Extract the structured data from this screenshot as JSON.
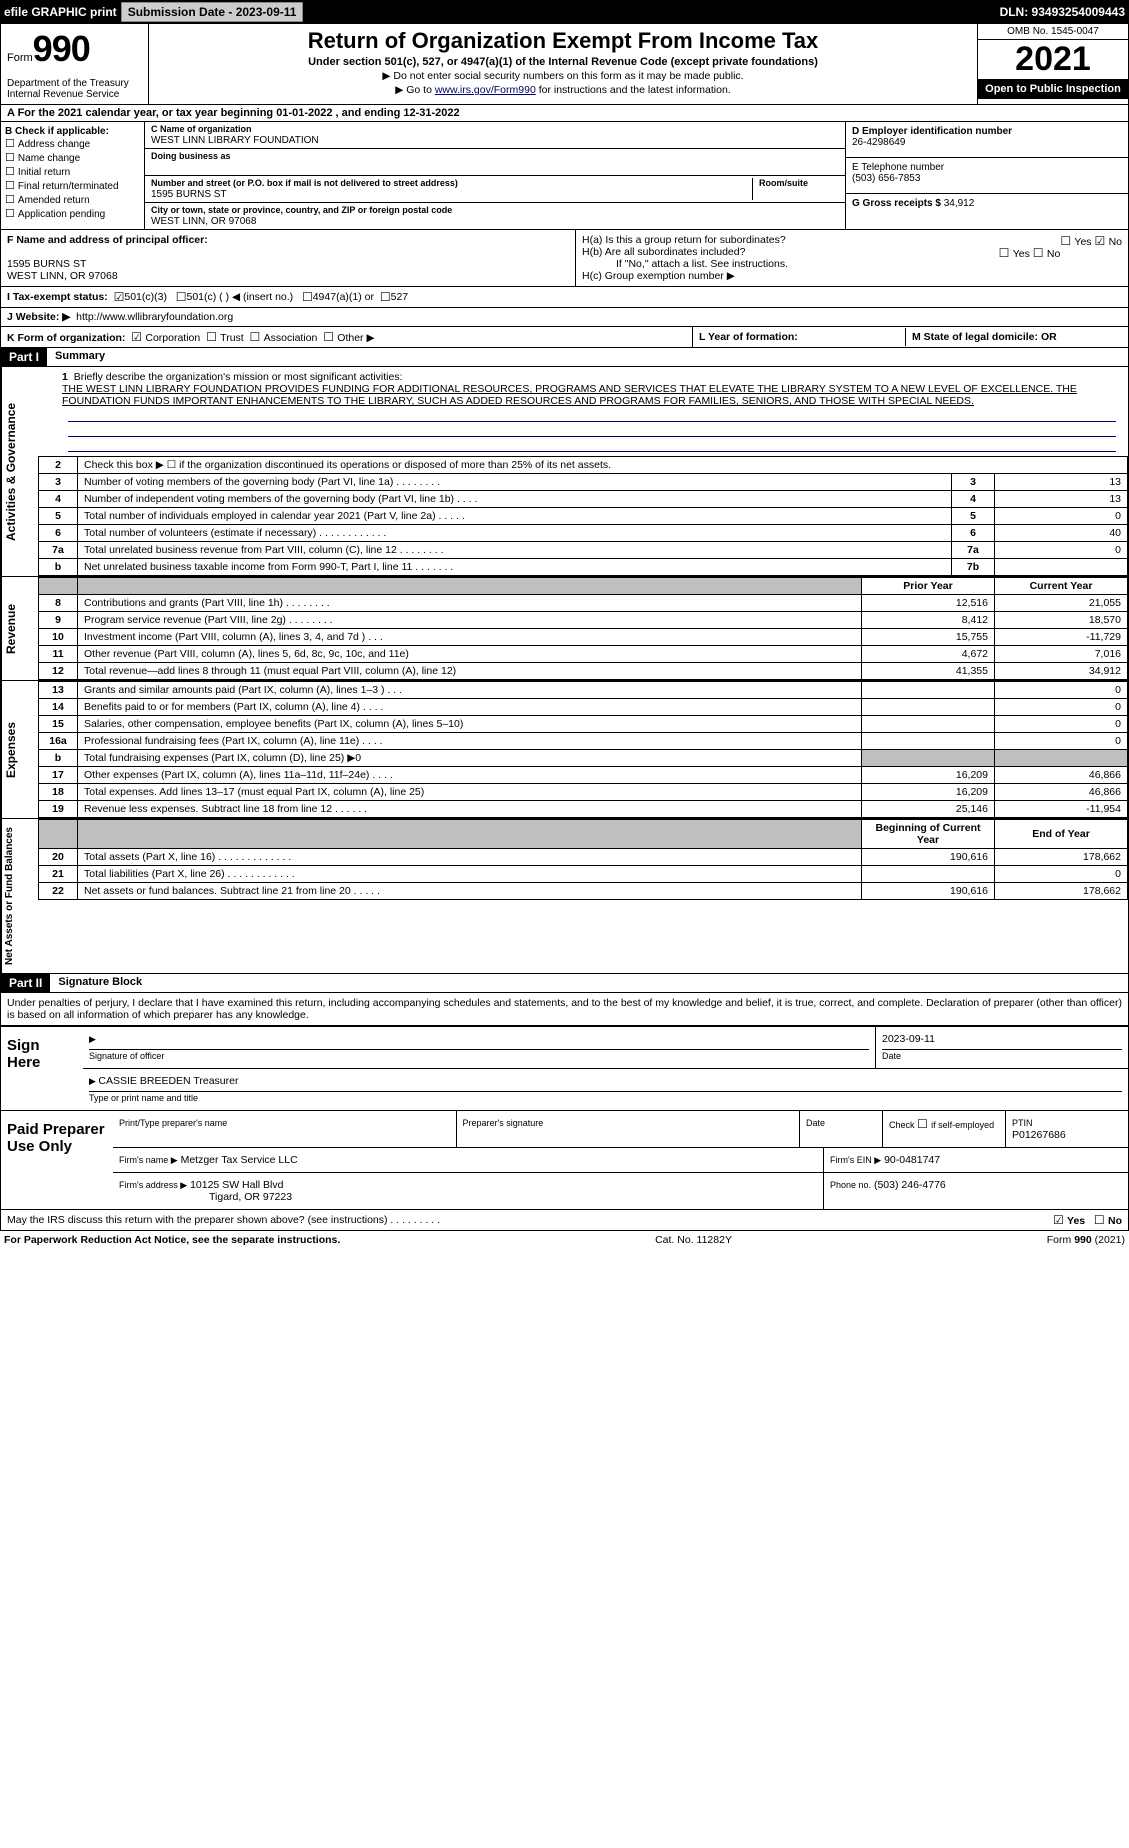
{
  "topbar": {
    "efile": "efile GRAPHIC print",
    "subdate_label": "Submission Date - 2023-09-11",
    "dln": "DLN: 93493254009443"
  },
  "header": {
    "form_word": "Form",
    "form_no": "990",
    "dept": "Department of the Treasury\nInternal Revenue Service",
    "title": "Return of Organization Exempt From Income Tax",
    "subtitle": "Under section 501(c), 527, or 4947(a)(1) of the Internal Revenue Code (except private foundations)",
    "note1": "▶ Do not enter social security numbers on this form as it may be made public.",
    "note2_pre": "▶ Go to ",
    "note2_link": "www.irs.gov/Form990",
    "note2_post": " for instructions and the latest information.",
    "omb": "OMB No. 1545-0047",
    "year": "2021",
    "open_pub": "Open to Public Inspection"
  },
  "rowA": "A For the 2021 calendar year, or tax year beginning 01-01-2022    , and ending 12-31-2022",
  "boxB": {
    "title": "B Check if applicable:",
    "items": [
      "Address change",
      "Name change",
      "Initial return",
      "Final return/terminated",
      "Amended return",
      "Application pending"
    ]
  },
  "boxC": {
    "c_label": "C Name of organization",
    "c_name": "WEST LINN LIBRARY FOUNDATION",
    "dba_label": "Doing business as",
    "street_label": "Number and street (or P.O. box if mail is not delivered to street address)",
    "street": "1595 BURNS ST",
    "room_label": "Room/suite",
    "city_label": "City or town, state or province, country, and ZIP or foreign postal code",
    "city": "WEST LINN, OR  97068"
  },
  "boxD": {
    "label": "D Employer identification number",
    "value": "26-4298649"
  },
  "boxE": {
    "label": "E Telephone number",
    "value": "(503) 656-7853"
  },
  "boxG": {
    "label": "G Gross receipts $",
    "value": "34,912"
  },
  "boxF": {
    "label": "F Name and address of principal officer:",
    "l1": "1595 BURNS ST",
    "l2": "WEST LINN, OR  97068"
  },
  "boxH": {
    "ha": "H(a)  Is this a group return for subordinates?",
    "hb": "H(b)  Are all subordinates included?",
    "hb_note": "If \"No,\" attach a list. See instructions.",
    "hc": "H(c)  Group exemption number ▶",
    "yes": "Yes",
    "no": "No"
  },
  "rowI": {
    "label": "I   Tax-exempt status:",
    "o1": "501(c)(3)",
    "o2": "501(c) (   ) ◀ (insert no.)",
    "o3": "4947(a)(1) or",
    "o4": "527"
  },
  "rowJ": {
    "label": "J   Website: ▶",
    "value": "http://www.wllibraryfoundation.org"
  },
  "rowK": {
    "label": "K Form of organization:",
    "opts": [
      "Corporation",
      "Trust",
      "Association",
      "Other ▶"
    ],
    "l_label": "L Year of formation:",
    "m_label": "M State of legal domicile: OR"
  },
  "part1": {
    "label": "Part I",
    "title": "Summary"
  },
  "mission": {
    "num": "1",
    "lead": "Briefly describe the organization's mission or most significant activities:",
    "text": "THE WEST LINN LIBRARY FOUNDATION PROVIDES FUNDING FOR ADDITIONAL RESOURCES, PROGRAMS AND SERVICES THAT ELEVATE THE LIBRARY SYSTEM TO A NEW LEVEL OF EXCELLENCE. THE FOUNDATION FUNDS IMPORTANT ENHANCEMENTS TO THE LIBRARY, SUCH AS ADDED RESOURCES AND PROGRAMS FOR FAMILIES, SENIORS, AND THOSE WITH SPECIAL NEEDS."
  },
  "gov_rows": [
    {
      "n": "2",
      "d": "Check this box ▶ ☐  if the organization discontinued its operations or disposed of more than 25% of its net assets.",
      "b": "",
      "v": ""
    },
    {
      "n": "3",
      "d": "Number of voting members of the governing body (Part VI, line 1a)   .    .    .    .    .    .    .    .",
      "b": "3",
      "v": "13"
    },
    {
      "n": "4",
      "d": "Number of independent voting members of the governing body (Part VI, line 1b)    .    .    .    .",
      "b": "4",
      "v": "13"
    },
    {
      "n": "5",
      "d": "Total number of individuals employed in calendar year 2021 (Part V, line 2a)   .    .    .    .    .",
      "b": "5",
      "v": "0"
    },
    {
      "n": "6",
      "d": "Total number of volunteers (estimate if necessary)    .    .    .    .    .    .    .    .    .    .    .    .",
      "b": "6",
      "v": "40"
    },
    {
      "n": "7a",
      "d": "Total unrelated business revenue from Part VIII, column (C), line 12   .    .    .    .    .    .    .    .",
      "b": "7a",
      "v": "0"
    },
    {
      "n": "b",
      "d": "Net unrelated business taxable income from Form 990-T, Part I, line 11   .    .    .    .    .    .    .",
      "b": "7b",
      "v": ""
    }
  ],
  "yr_hdr": {
    "py": "Prior Year",
    "cy": "Current Year"
  },
  "rev_rows": [
    {
      "n": "8",
      "d": "Contributions and grants (Part VIII, line 1h)    .    .    .    .    .    .    .    .",
      "py": "12,516",
      "cy": "21,055"
    },
    {
      "n": "9",
      "d": "Program service revenue (Part VIII, line 2g)    .    .    .    .    .    .    .    .",
      "py": "8,412",
      "cy": "18,570"
    },
    {
      "n": "10",
      "d": "Investment income (Part VIII, column (A), lines 3, 4, and 7d )    .    .    .",
      "py": "15,755",
      "cy": "-11,729"
    },
    {
      "n": "11",
      "d": "Other revenue (Part VIII, column (A), lines 5, 6d, 8c, 9c, 10c, and 11e)",
      "py": "4,672",
      "cy": "7,016"
    },
    {
      "n": "12",
      "d": "Total revenue—add lines 8 through 11 (must equal Part VIII, column (A), line 12)",
      "py": "41,355",
      "cy": "34,912"
    }
  ],
  "exp_rows": [
    {
      "n": "13",
      "d": "Grants and similar amounts paid (Part IX, column (A), lines 1–3 )   .    .    .",
      "py": "",
      "cy": "0"
    },
    {
      "n": "14",
      "d": "Benefits paid to or for members (Part IX, column (A), line 4)   .    .    .    .",
      "py": "",
      "cy": "0"
    },
    {
      "n": "15",
      "d": "Salaries, other compensation, employee benefits (Part IX, column (A), lines 5–10)",
      "py": "",
      "cy": "0"
    },
    {
      "n": "16a",
      "d": "Professional fundraising fees (Part IX, column (A), line 11e)   .    .    .    .",
      "py": "",
      "cy": "0"
    },
    {
      "n": "b",
      "d": "Total fundraising expenses (Part IX, column (D), line 25) ▶0",
      "py": "grey",
      "cy": "grey"
    },
    {
      "n": "17",
      "d": "Other expenses (Part IX, column (A), lines 11a–11d, 11f–24e)   .    .    .    .",
      "py": "16,209",
      "cy": "46,866"
    },
    {
      "n": "18",
      "d": "Total expenses. Add lines 13–17 (must equal Part IX, column (A), line 25)",
      "py": "16,209",
      "cy": "46,866"
    },
    {
      "n": "19",
      "d": "Revenue less expenses. Subtract line 18 from line 12   .    .    .    .    .    .",
      "py": "25,146",
      "cy": "-11,954"
    }
  ],
  "na_hdr": {
    "py": "Beginning of Current Year",
    "cy": "End of Year"
  },
  "na_rows": [
    {
      "n": "20",
      "d": "Total assets (Part X, line 16)   .    .    .    .    .    .    .    .    .    .    .    .    .",
      "py": "190,616",
      "cy": "178,662"
    },
    {
      "n": "21",
      "d": "Total liabilities (Part X, line 26)   .    .    .    .    .    .    .    .    .    .    .    .",
      "py": "",
      "cy": "0"
    },
    {
      "n": "22",
      "d": "Net assets or fund balances. Subtract line 21 from line 20   .    .    .    .    .",
      "py": "190,616",
      "cy": "178,662"
    }
  ],
  "part2": {
    "label": "Part II",
    "title": "Signature Block"
  },
  "penalties": "Under penalties of perjury, I declare that I have examined this return, including accompanying schedules and statements, and to the best of my knowledge and belief, it is true, correct, and complete. Declaration of preparer (other than officer) is based on all information of which preparer has any knowledge.",
  "sign": {
    "here": "Sign Here",
    "sig_officer": "Signature of officer",
    "date": "Date",
    "date_v": "2023-09-11",
    "name": "CASSIE BREEDEN  Treasurer",
    "name_lbl": "Type or print name and title"
  },
  "paid": {
    "title": "Paid Preparer Use Only",
    "h1": "Print/Type preparer's name",
    "h2": "Preparer's signature",
    "h3": "Date",
    "h4_pre": "Check",
    "h4_post": "if self-employed",
    "h5": "PTIN",
    "ptin": "P01267686",
    "firm_name_l": "Firm's name    ▶",
    "firm_name": "Metzger Tax Service LLC",
    "firm_ein_l": "Firm's EIN ▶",
    "firm_ein": "90-0481747",
    "firm_addr_l": "Firm's address ▶",
    "firm_addr1": "10125 SW Hall Blvd",
    "firm_addr2": "Tigard, OR  97223",
    "phone_l": "Phone no.",
    "phone": "(503) 246-4776"
  },
  "discuss": {
    "q": "May the IRS discuss this return with the preparer shown above? (see instructions)   .    .    .    .    .    .    .    .    .",
    "yes": "Yes",
    "no": "No"
  },
  "footer": {
    "left": "For Paperwork Reduction Act Notice, see the separate instructions.",
    "mid": "Cat. No. 11282Y",
    "right": "Form 990 (2021)"
  },
  "side": {
    "gov": "Activities & Governance",
    "rev": "Revenue",
    "exp": "Expenses",
    "na": "Net Assets or Fund Balances"
  }
}
